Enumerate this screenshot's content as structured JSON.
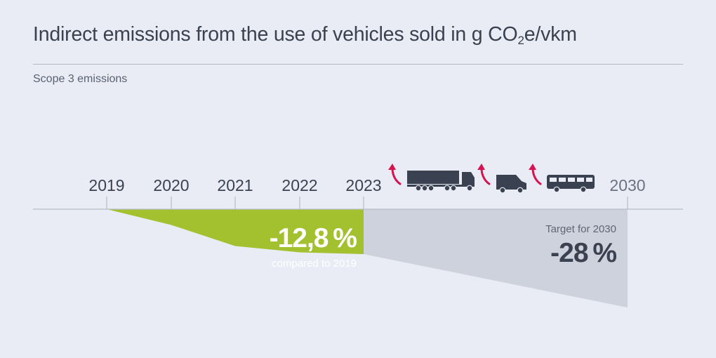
{
  "header": {
    "title_main": "Indirect emissions from the use of vehicles sold in g CO",
    "title_sub": "2",
    "title_end": "e/vkm",
    "subtitle": "Scope 3 emissions"
  },
  "colors": {
    "background": "#e9ecf4",
    "actual": "#a3c02e",
    "target": "#cdd2dc",
    "text_dark": "#3a4150",
    "text_muted": "#5a6272",
    "axis": "#b8bcc7",
    "accent_arrow": "#d5134f",
    "vehicle": "#3a4150"
  },
  "icons": [
    "truck-icon",
    "van-icon",
    "bus-icon",
    "up-arrow-icon"
  ],
  "chart_data": {
    "type": "area",
    "categories": [
      "2019",
      "2020",
      "2021",
      "2022",
      "2023",
      "2030"
    ],
    "actual": {
      "x": [
        2019,
        2020,
        2021,
        2022,
        2023
      ],
      "values": [
        0,
        -4.5,
        -10.5,
        -12.3,
        -12.8
      ]
    },
    "target": {
      "x": [
        2023,
        2030
      ],
      "values": [
        -12.8,
        -28
      ]
    },
    "ylim": [
      -30,
      0
    ],
    "actual_label": {
      "value": "-12,8 %",
      "caption": "compared to 2019"
    },
    "target_label": {
      "caption": "Target for 2030",
      "value": "-28 %"
    }
  }
}
